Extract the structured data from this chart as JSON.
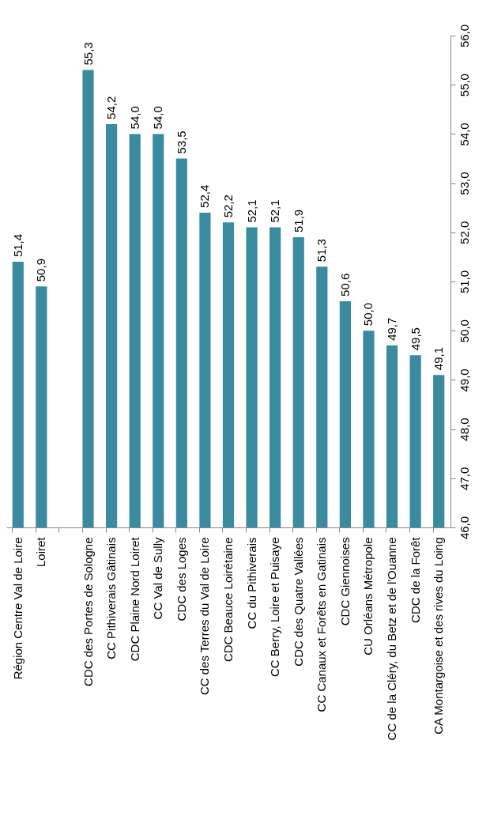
{
  "chart_data": {
    "type": "bar",
    "categories": [
      "Région Centre Val de Loire",
      "Loiret",
      null,
      "CDC des Portes de Sologne",
      "CC Pithiverais Gâtinais",
      "CDC Plaine Nord Loiret",
      "CC Val de Sully",
      "CDC des Loges",
      "CC des Terres du Val de Loire",
      "CDC Beauce Loirétaine",
      "CC du Pithiverais",
      "CC Berry, Loire et Puisaye",
      "CDC des Quatre Vallées",
      "CC Canaux et Forêts en Gatinais",
      "CDC Giennoises",
      "CU Orléans Métropole",
      "CC de la Cléry, du  Betz et de l'Ouanne",
      "CDC de la Forêt",
      "CA Montargoise et des rives du Loing"
    ],
    "values": [
      51.4,
      50.9,
      null,
      55.3,
      54.2,
      54.0,
      54.0,
      53.5,
      52.4,
      52.2,
      52.1,
      52.1,
      51.9,
      51.3,
      50.6,
      50.0,
      49.7,
      49.5,
      49.1
    ],
    "value_labels": [
      "51,4",
      "50,9",
      null,
      "55,3",
      "54,2",
      "54,0",
      "54,0",
      "53,5",
      "52,4",
      "52,2",
      "52,1",
      "52,1",
      "51,9",
      "51,3",
      "50,6",
      "50,0",
      "49,7",
      "49,5",
      "49,1"
    ],
    "color": "#3a8ba0",
    "ylim": [
      46,
      56
    ],
    "yticks": [
      {
        "value": 46,
        "label": "46,0"
      },
      {
        "value": 47,
        "label": "47,0"
      },
      {
        "value": 48,
        "label": "48,0"
      },
      {
        "value": 49,
        "label": "49,0"
      },
      {
        "value": 50,
        "label": "50,0"
      },
      {
        "value": 51,
        "label": "51,0"
      },
      {
        "value": 52,
        "label": "52,0"
      },
      {
        "value": 53,
        "label": "53,0"
      },
      {
        "value": 54,
        "label": "54,0"
      },
      {
        "value": 55,
        "label": "55,0"
      },
      {
        "value": 56,
        "label": "56,0"
      }
    ],
    "grid": false
  }
}
